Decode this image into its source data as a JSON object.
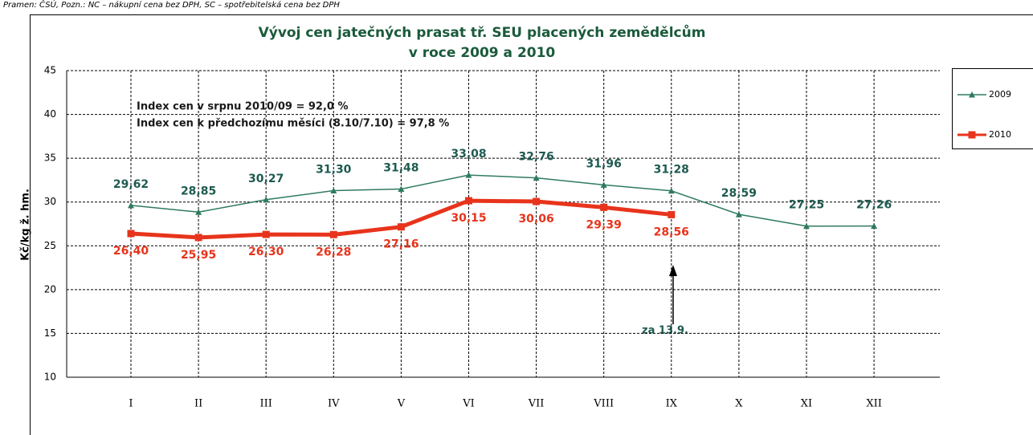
{
  "note": "Pramen: ČSÚ, Pozn.: NC – nákupní cena bez DPH, SC – spotřebitelská cena bez DPH",
  "chart_data": {
    "type": "line",
    "title": "Vývoj cen jatečných prasat tř. SEU placených zemědělcům",
    "subtitle": "v roce 2009  a 2010",
    "ylabel": "Kč/kg ž. hm.",
    "categories": [
      "I",
      "II",
      "III",
      "IV",
      "V",
      "VI",
      "VII",
      "VIII",
      "IX",
      "X",
      "XI",
      "XII"
    ],
    "series": [
      {
        "name": "2009",
        "color": "#2f7b5e",
        "label_color": "#1e5a50",
        "marker": "triangle",
        "width": 1.5,
        "values": [
          29.62,
          28.85,
          30.27,
          31.3,
          31.48,
          33.08,
          32.76,
          31.96,
          31.28,
          28.59,
          27.25,
          27.26
        ],
        "value_labels": [
          "29,62",
          "28,85",
          "30,27",
          "31,30",
          "31,48",
          "33,08",
          "32,76",
          "31,96",
          "31,28",
          "28,59",
          "27,25",
          "27,26"
        ]
      },
      {
        "name": "2010",
        "color": "#e8341c",
        "label_color": "#e8341c",
        "marker": "square",
        "width": 5,
        "values": [
          26.4,
          25.95,
          26.3,
          26.28,
          27.16,
          30.15,
          30.06,
          29.39,
          28.56,
          null,
          null,
          null
        ],
        "value_labels": [
          "26,40",
          "25,95",
          "26,30",
          "26,28",
          "27,16",
          "30,15",
          "30,06",
          "29,39",
          "28,56",
          null,
          null,
          null
        ]
      }
    ],
    "ylim": [
      10,
      45
    ],
    "yticks": [
      10,
      15,
      20,
      25,
      30,
      35,
      40,
      45
    ],
    "grid": true,
    "legend": "right",
    "annotations": [
      "Index cen v srpnu 2010/09 = 92,0 %",
      "Index cen k předchozímu měsíci (8.10/7.10) = 97,8 %",
      "za 13.9."
    ]
  }
}
